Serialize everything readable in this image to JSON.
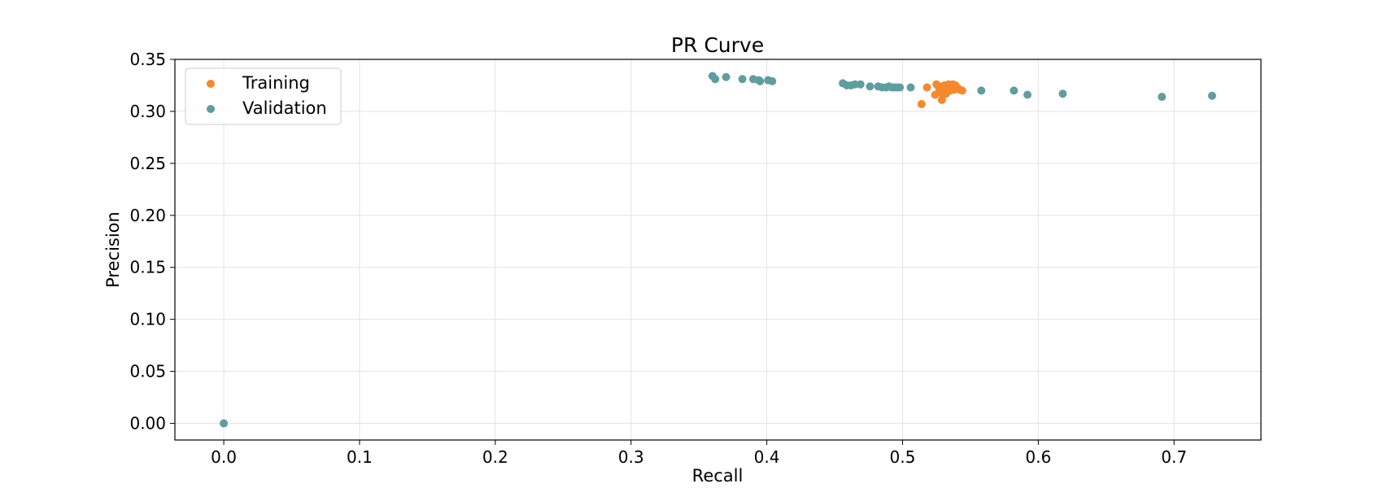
{
  "chart_data": {
    "type": "scatter",
    "title": "PR Curve",
    "xlabel": "Recall",
    "ylabel": "Precision",
    "xlim": [
      -0.036,
      0.764
    ],
    "ylim": [
      -0.016,
      0.35
    ],
    "x_ticks": [
      0.0,
      0.1,
      0.2,
      0.3,
      0.4,
      0.5,
      0.6,
      0.7
    ],
    "x_tick_labels": [
      "0.0",
      "0.1",
      "0.2",
      "0.3",
      "0.4",
      "0.5",
      "0.6",
      "0.7"
    ],
    "y_ticks": [
      0.0,
      0.05,
      0.1,
      0.15,
      0.2,
      0.25,
      0.3,
      0.35
    ],
    "y_tick_labels": [
      "0.00",
      "0.05",
      "0.10",
      "0.15",
      "0.20",
      "0.25",
      "0.30",
      "0.35"
    ],
    "grid": true,
    "legend_position": "top-left",
    "series": [
      {
        "name": "Validation",
        "color": "#5F9EA0",
        "points": [
          [
            0.0,
            0.0
          ],
          [
            0.36,
            0.334
          ],
          [
            0.362,
            0.331
          ],
          [
            0.37,
            0.333
          ],
          [
            0.382,
            0.331
          ],
          [
            0.39,
            0.331
          ],
          [
            0.394,
            0.33
          ],
          [
            0.395,
            0.329
          ],
          [
            0.401,
            0.33
          ],
          [
            0.404,
            0.329
          ],
          [
            0.456,
            0.327
          ],
          [
            0.459,
            0.325
          ],
          [
            0.462,
            0.325
          ],
          [
            0.465,
            0.326
          ],
          [
            0.469,
            0.326
          ],
          [
            0.476,
            0.324
          ],
          [
            0.482,
            0.324
          ],
          [
            0.485,
            0.323
          ],
          [
            0.488,
            0.323
          ],
          [
            0.49,
            0.324
          ],
          [
            0.492,
            0.323
          ],
          [
            0.494,
            0.323
          ],
          [
            0.496,
            0.323
          ],
          [
            0.498,
            0.323
          ],
          [
            0.506,
            0.323
          ],
          [
            0.538,
            0.321
          ],
          [
            0.558,
            0.32
          ],
          [
            0.582,
            0.32
          ],
          [
            0.592,
            0.316
          ],
          [
            0.618,
            0.317
          ],
          [
            0.691,
            0.314
          ],
          [
            0.728,
            0.315
          ]
        ]
      },
      {
        "name": "Training",
        "color": "#F5892C",
        "points": [
          [
            0.514,
            0.307
          ],
          [
            0.518,
            0.323
          ],
          [
            0.524,
            0.316
          ],
          [
            0.525,
            0.326
          ],
          [
            0.527,
            0.322
          ],
          [
            0.528,
            0.318
          ],
          [
            0.529,
            0.324
          ],
          [
            0.529,
            0.311
          ],
          [
            0.53,
            0.32
          ],
          [
            0.531,
            0.325
          ],
          [
            0.532,
            0.317
          ],
          [
            0.533,
            0.322
          ],
          [
            0.534,
            0.326
          ],
          [
            0.535,
            0.32
          ],
          [
            0.536,
            0.324
          ],
          [
            0.537,
            0.326
          ],
          [
            0.538,
            0.321
          ],
          [
            0.539,
            0.325
          ],
          [
            0.54,
            0.323
          ],
          [
            0.541,
            0.322
          ],
          [
            0.542,
            0.321
          ],
          [
            0.544,
            0.32
          ]
        ]
      }
    ],
    "legend": [
      {
        "label": "Training",
        "color": "#F5892C"
      },
      {
        "label": "Validation",
        "color": "#5F9EA0"
      }
    ]
  }
}
